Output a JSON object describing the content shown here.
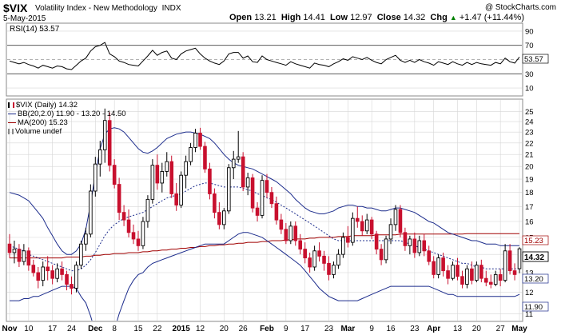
{
  "header": {
    "symbol": "$VIX",
    "name": "Volatility Index - New Methodology",
    "exchange": "INDX",
    "copyright": "@ StockCharts.com",
    "date": "5-May-2015",
    "open_label": "Open",
    "open": "13.21",
    "high_label": "High",
    "high": "14.41",
    "low_label": "Low",
    "low": "12.97",
    "close_label": "Close",
    "close": "14.32",
    "chg_label": "Chg",
    "chg": "+1.47 (+11.44%)",
    "chg_arrow": "▲"
  },
  "rsi_panel": {
    "label": "RSI(14) 53.57",
    "current_value": "53.57",
    "ticks": [
      "90",
      "70",
      "50",
      "30",
      "10"
    ]
  },
  "legend": {
    "price": "$VIX (Daily) 14.32",
    "bb": "BB(20,2.0) 11.90 - 13.20 - 14.50",
    "ma": "MA(200) 15.23",
    "volume": "Volume undef"
  },
  "price_tags": {
    "ma": "15.23",
    "close": "14.32",
    "bb_mid": "13.20",
    "bb_lower": "11.90"
  },
  "colors": {
    "up": "#000000",
    "down": "#c8102e",
    "bb": "#1c2c8c",
    "ma": "#a00000",
    "rsi": "#000000",
    "grid": "#d6d6d6"
  },
  "chart_data": {
    "type": "candlestick",
    "title": "$VIX Volatility Index - New Methodology INDX",
    "y_axis_ticks": [
      25,
      24,
      23,
      22,
      21,
      20,
      19,
      18,
      17,
      16,
      15,
      14,
      13,
      12,
      11
    ],
    "y_scale": "log",
    "x_axis_labels": [
      "Nov",
      "10",
      "17",
      "24",
      "Dec",
      "8",
      "15",
      "22",
      "2015",
      "12",
      "20",
      "26",
      "Feb",
      "9",
      "17",
      "23",
      "Mar",
      "9",
      "16",
      "23",
      "Apr",
      "13",
      "20",
      "27",
      "May"
    ],
    "ylim": [
      10.7,
      26.2
    ],
    "candles": [
      {
        "o": 14.6,
        "h": 15.2,
        "l": 13.8,
        "c": 14.1
      },
      {
        "o": 14.1,
        "h": 14.8,
        "l": 13.5,
        "c": 14.3
      },
      {
        "o": 14.3,
        "h": 14.6,
        "l": 13.3,
        "c": 13.6
      },
      {
        "o": 13.6,
        "h": 14.6,
        "l": 13.4,
        "c": 14.2
      },
      {
        "o": 14.2,
        "h": 14.4,
        "l": 13.1,
        "c": 13.4
      },
      {
        "o": 13.4,
        "h": 13.7,
        "l": 12.8,
        "c": 13.0
      },
      {
        "o": 13.0,
        "h": 13.3,
        "l": 12.2,
        "c": 12.6
      },
      {
        "o": 12.6,
        "h": 13.6,
        "l": 12.3,
        "c": 13.3
      },
      {
        "o": 13.3,
        "h": 13.9,
        "l": 12.6,
        "c": 13.1
      },
      {
        "o": 13.1,
        "h": 13.4,
        "l": 12.4,
        "c": 12.7
      },
      {
        "o": 12.7,
        "h": 13.5,
        "l": 12.5,
        "c": 13.2
      },
      {
        "o": 13.2,
        "h": 13.6,
        "l": 12.6,
        "c": 12.9
      },
      {
        "o": 12.9,
        "h": 13.1,
        "l": 12.1,
        "c": 12.4
      },
      {
        "o": 12.4,
        "h": 12.8,
        "l": 11.9,
        "c": 12.2
      },
      {
        "o": 12.2,
        "h": 13.6,
        "l": 12.0,
        "c": 13.4
      },
      {
        "o": 13.4,
        "h": 14.8,
        "l": 13.2,
        "c": 14.6
      },
      {
        "o": 14.6,
        "h": 15.6,
        "l": 14.2,
        "c": 15.2
      },
      {
        "o": 15.2,
        "h": 18.6,
        "l": 15.0,
        "c": 18.1
      },
      {
        "o": 18.1,
        "h": 20.8,
        "l": 17.7,
        "c": 20.2
      },
      {
        "o": 20.2,
        "h": 22.2,
        "l": 19.2,
        "c": 21.4
      },
      {
        "o": 21.4,
        "h": 25.3,
        "l": 20.3,
        "c": 24.1
      },
      {
        "o": 24.1,
        "h": 24.9,
        "l": 19.6,
        "c": 20.1
      },
      {
        "o": 20.1,
        "h": 20.6,
        "l": 18.3,
        "c": 18.6
      },
      {
        "o": 18.6,
        "h": 19.1,
        "l": 16.1,
        "c": 16.6
      },
      {
        "o": 16.6,
        "h": 17.1,
        "l": 15.7,
        "c": 16.1
      },
      {
        "o": 16.1,
        "h": 16.8,
        "l": 15.0,
        "c": 15.3
      },
      {
        "o": 15.3,
        "h": 15.8,
        "l": 14.6,
        "c": 14.9
      },
      {
        "o": 14.9,
        "h": 15.4,
        "l": 14.2,
        "c": 14.5
      },
      {
        "o": 14.5,
        "h": 16.3,
        "l": 14.3,
        "c": 16.0
      },
      {
        "o": 16.0,
        "h": 17.8,
        "l": 15.6,
        "c": 17.5
      },
      {
        "o": 17.5,
        "h": 20.6,
        "l": 17.2,
        "c": 20.1
      },
      {
        "o": 20.1,
        "h": 21.0,
        "l": 18.2,
        "c": 18.7
      },
      {
        "o": 18.7,
        "h": 20.3,
        "l": 18.0,
        "c": 19.6
      },
      {
        "o": 19.6,
        "h": 21.2,
        "l": 19.2,
        "c": 20.4
      },
      {
        "o": 20.4,
        "h": 20.9,
        "l": 17.6,
        "c": 17.9
      },
      {
        "o": 17.9,
        "h": 18.7,
        "l": 16.7,
        "c": 17.1
      },
      {
        "o": 17.1,
        "h": 19.6,
        "l": 16.9,
        "c": 19.3
      },
      {
        "o": 19.3,
        "h": 20.9,
        "l": 18.3,
        "c": 20.4
      },
      {
        "o": 20.4,
        "h": 22.0,
        "l": 20.1,
        "c": 21.6
      },
      {
        "o": 21.6,
        "h": 23.3,
        "l": 21.2,
        "c": 22.9
      },
      {
        "o": 22.9,
        "h": 23.4,
        "l": 21.4,
        "c": 21.7
      },
      {
        "o": 21.7,
        "h": 22.1,
        "l": 19.5,
        "c": 19.8
      },
      {
        "o": 19.8,
        "h": 20.3,
        "l": 17.5,
        "c": 17.9
      },
      {
        "o": 17.9,
        "h": 18.3,
        "l": 16.2,
        "c": 16.6
      },
      {
        "o": 16.6,
        "h": 17.3,
        "l": 15.5,
        "c": 15.8
      },
      {
        "o": 15.8,
        "h": 16.9,
        "l": 15.5,
        "c": 16.7
      },
      {
        "o": 16.7,
        "h": 20.2,
        "l": 16.5,
        "c": 19.9
      },
      {
        "o": 19.9,
        "h": 21.3,
        "l": 19.0,
        "c": 20.6
      },
      {
        "o": 20.6,
        "h": 23.1,
        "l": 20.3,
        "c": 20.8
      },
      {
        "o": 20.8,
        "h": 21.2,
        "l": 18.1,
        "c": 18.4
      },
      {
        "o": 18.4,
        "h": 19.5,
        "l": 17.8,
        "c": 19.1
      },
      {
        "o": 19.1,
        "h": 19.4,
        "l": 16.6,
        "c": 16.9
      },
      {
        "o": 16.9,
        "h": 17.3,
        "l": 16.0,
        "c": 16.4
      },
      {
        "o": 16.4,
        "h": 19.3,
        "l": 16.2,
        "c": 18.9
      },
      {
        "o": 18.9,
        "h": 19.4,
        "l": 17.6,
        "c": 18.0
      },
      {
        "o": 18.0,
        "h": 18.4,
        "l": 16.9,
        "c": 17.2
      },
      {
        "o": 17.2,
        "h": 17.7,
        "l": 15.8,
        "c": 16.1
      },
      {
        "o": 16.1,
        "h": 16.5,
        "l": 15.2,
        "c": 15.5
      },
      {
        "o": 15.5,
        "h": 15.9,
        "l": 14.6,
        "c": 14.8
      },
      {
        "o": 14.8,
        "h": 16.0,
        "l": 14.6,
        "c": 15.7
      },
      {
        "o": 15.7,
        "h": 16.0,
        "l": 14.5,
        "c": 14.8
      },
      {
        "o": 14.8,
        "h": 15.2,
        "l": 14.0,
        "c": 14.3
      },
      {
        "o": 14.3,
        "h": 14.7,
        "l": 13.5,
        "c": 13.8
      },
      {
        "o": 13.8,
        "h": 14.1,
        "l": 13.0,
        "c": 13.3
      },
      {
        "o": 13.3,
        "h": 14.5,
        "l": 13.1,
        "c": 14.2
      },
      {
        "o": 14.2,
        "h": 14.7,
        "l": 13.6,
        "c": 13.9
      },
      {
        "o": 13.9,
        "h": 14.2,
        "l": 13.1,
        "c": 13.5
      },
      {
        "o": 13.5,
        "h": 13.9,
        "l": 12.6,
        "c": 12.9
      },
      {
        "o": 12.9,
        "h": 13.6,
        "l": 12.7,
        "c": 13.4
      },
      {
        "o": 13.4,
        "h": 14.3,
        "l": 13.2,
        "c": 14.0
      },
      {
        "o": 14.0,
        "h": 15.3,
        "l": 13.8,
        "c": 15.0
      },
      {
        "o": 15.0,
        "h": 15.7,
        "l": 14.4,
        "c": 14.7
      },
      {
        "o": 14.7,
        "h": 16.6,
        "l": 14.5,
        "c": 16.2
      },
      {
        "o": 16.2,
        "h": 17.0,
        "l": 15.6,
        "c": 16.0
      },
      {
        "o": 16.0,
        "h": 16.4,
        "l": 15.1,
        "c": 15.4
      },
      {
        "o": 15.4,
        "h": 16.5,
        "l": 15.2,
        "c": 16.1
      },
      {
        "o": 16.1,
        "h": 16.3,
        "l": 14.9,
        "c": 15.2
      },
      {
        "o": 15.2,
        "h": 15.4,
        "l": 14.0,
        "c": 14.3
      },
      {
        "o": 14.3,
        "h": 14.6,
        "l": 13.4,
        "c": 13.7
      },
      {
        "o": 13.7,
        "h": 15.1,
        "l": 13.5,
        "c": 14.9
      },
      {
        "o": 14.9,
        "h": 16.2,
        "l": 14.6,
        "c": 15.8
      },
      {
        "o": 15.8,
        "h": 17.1,
        "l": 15.4,
        "c": 16.8
      },
      {
        "o": 16.8,
        "h": 17.1,
        "l": 15.0,
        "c": 15.3
      },
      {
        "o": 15.3,
        "h": 15.6,
        "l": 14.2,
        "c": 14.5
      },
      {
        "o": 14.5,
        "h": 15.1,
        "l": 14.0,
        "c": 14.9
      },
      {
        "o": 14.9,
        "h": 15.3,
        "l": 13.8,
        "c": 14.1
      },
      {
        "o": 14.1,
        "h": 15.1,
        "l": 13.9,
        "c": 14.8
      },
      {
        "o": 14.8,
        "h": 15.2,
        "l": 13.9,
        "c": 14.2
      },
      {
        "o": 14.2,
        "h": 14.5,
        "l": 13.4,
        "c": 13.6
      },
      {
        "o": 13.6,
        "h": 13.9,
        "l": 12.7,
        "c": 12.9
      },
      {
        "o": 12.9,
        "h": 14.0,
        "l": 12.7,
        "c": 13.8
      },
      {
        "o": 13.8,
        "h": 14.1,
        "l": 12.8,
        "c": 13.1
      },
      {
        "o": 13.1,
        "h": 13.4,
        "l": 12.4,
        "c": 12.7
      },
      {
        "o": 12.7,
        "h": 13.6,
        "l": 12.6,
        "c": 13.4
      },
      {
        "o": 13.4,
        "h": 13.8,
        "l": 12.6,
        "c": 12.8
      },
      {
        "o": 12.8,
        "h": 13.1,
        "l": 12.2,
        "c": 12.4
      },
      {
        "o": 12.4,
        "h": 13.4,
        "l": 12.2,
        "c": 13.2
      },
      {
        "o": 13.2,
        "h": 13.6,
        "l": 12.4,
        "c": 12.6
      },
      {
        "o": 12.6,
        "h": 13.6,
        "l": 12.5,
        "c": 13.4
      },
      {
        "o": 13.4,
        "h": 13.7,
        "l": 12.5,
        "c": 12.7
      },
      {
        "o": 12.7,
        "h": 13.1,
        "l": 12.3,
        "c": 12.5
      },
      {
        "o": 12.5,
        "h": 12.9,
        "l": 12.2,
        "c": 12.4
      },
      {
        "o": 12.4,
        "h": 13.1,
        "l": 12.3,
        "c": 12.9
      },
      {
        "o": 12.9,
        "h": 13.2,
        "l": 12.3,
        "c": 12.6
      },
      {
        "o": 12.6,
        "h": 14.6,
        "l": 12.5,
        "c": 14.2
      },
      {
        "o": 14.2,
        "h": 14.6,
        "l": 12.9,
        "c": 13.1
      },
      {
        "o": 13.1,
        "h": 13.5,
        "l": 12.6,
        "c": 12.9
      },
      {
        "o": 13.21,
        "h": 14.41,
        "l": 12.97,
        "c": 14.32
      }
    ],
    "bollinger": {
      "upper": [
        18.0,
        17.9,
        17.8,
        17.6,
        17.4,
        17.0,
        16.6,
        16.2,
        15.6,
        15.1,
        14.6,
        14.2,
        14.0,
        14.0,
        14.2,
        14.6,
        15.5,
        17.2,
        19.4,
        21.5,
        22.8,
        23.3,
        23.4,
        23.3,
        23.0,
        22.5,
        22.0,
        21.5,
        21.2,
        21.1,
        21.3,
        21.6,
        22.0,
        22.4,
        22.6,
        22.8,
        22.9,
        23.0,
        23.0,
        22.9,
        22.8,
        22.6,
        22.4,
        22.0,
        21.5,
        21.0,
        20.6,
        20.3,
        20.1,
        20.0,
        19.9,
        19.8,
        19.6,
        19.4,
        19.2,
        19.0,
        18.8,
        18.5,
        18.2,
        17.9,
        17.5,
        17.2,
        16.9,
        16.7,
        16.6,
        16.5,
        16.5,
        16.6,
        16.7,
        16.9,
        17.0,
        17.1,
        17.1,
        17.0,
        17.0,
        16.9,
        16.9,
        16.8,
        16.7,
        16.7,
        16.8,
        16.9,
        16.9,
        16.8,
        16.7,
        16.6,
        16.4,
        16.2,
        16.0,
        15.9,
        15.7,
        15.5,
        15.3,
        15.2,
        15.1,
        15.0,
        14.9,
        14.8,
        14.8,
        14.7,
        14.6,
        14.6,
        14.6,
        14.5,
        14.5,
        14.5,
        14.5,
        14.5
      ],
      "middle": [
        14.5,
        14.4,
        14.3,
        14.2,
        14.0,
        13.9,
        13.8,
        13.7,
        13.6,
        13.5,
        13.4,
        13.3,
        13.2,
        13.1,
        13.1,
        13.2,
        13.4,
        13.7,
        14.1,
        14.6,
        15.1,
        15.5,
        15.8,
        16.0,
        16.2,
        16.3,
        16.4,
        16.5,
        16.6,
        16.8,
        17.0,
        17.2,
        17.4,
        17.6,
        17.7,
        17.8,
        17.9,
        18.1,
        18.3,
        18.5,
        18.6,
        18.7,
        18.7,
        18.6,
        18.5,
        18.4,
        18.4,
        18.4,
        18.4,
        18.3,
        18.2,
        18.1,
        17.9,
        17.8,
        17.6,
        17.5,
        17.3,
        17.1,
        16.9,
        16.7,
        16.5,
        16.3,
        16.1,
        15.9,
        15.7,
        15.5,
        15.3,
        15.1,
        14.9,
        14.8,
        14.8,
        14.8,
        14.8,
        14.8,
        14.8,
        14.8,
        14.8,
        14.8,
        14.8,
        14.8,
        14.8,
        14.8,
        14.8,
        14.7,
        14.6,
        14.5,
        14.4,
        14.3,
        14.2,
        14.1,
        14.0,
        13.9,
        13.8,
        13.7,
        13.6,
        13.5,
        13.5,
        13.4,
        13.3,
        13.3,
        13.2,
        13.2,
        13.2,
        13.2,
        13.2,
        13.2,
        13.2,
        13.2
      ],
      "lower": [
        11.6,
        11.6,
        11.6,
        11.7,
        11.7,
        11.8,
        11.8,
        11.9,
        12.0,
        12.1,
        12.2,
        12.3,
        12.3,
        12.3,
        12.2,
        11.8,
        11.5,
        10.9,
        10.2,
        9.7,
        9.5,
        9.7,
        10.3,
        11.0,
        11.6,
        12.2,
        12.6,
        12.9,
        13.0,
        13.3,
        13.5,
        13.6,
        13.7,
        13.8,
        13.9,
        14.0,
        14.1,
        14.2,
        14.3,
        14.4,
        14.5,
        14.6,
        14.6,
        14.6,
        14.6,
        14.6,
        14.8,
        15.0,
        15.2,
        15.3,
        15.3,
        15.2,
        15.1,
        15.0,
        14.8,
        14.6,
        14.4,
        14.2,
        14.0,
        13.8,
        13.6,
        13.4,
        13.1,
        12.8,
        12.5,
        12.2,
        12.0,
        11.8,
        11.7,
        11.6,
        11.6,
        11.6,
        11.6,
        11.6,
        11.7,
        11.8,
        11.9,
        12.0,
        12.1,
        12.2,
        12.3,
        12.3,
        12.3,
        12.3,
        12.3,
        12.3,
        12.3,
        12.3,
        12.3,
        12.2,
        12.1,
        12.0,
        11.9,
        11.9,
        11.8,
        11.8,
        11.8,
        11.8,
        11.8,
        11.8,
        11.8,
        11.8,
        11.8,
        11.8,
        11.8,
        11.8,
        11.8,
        11.9
      ]
    },
    "ma200": [
      13.8,
      13.8,
      13.8,
      13.8,
      13.8,
      13.8,
      13.8,
      13.8,
      13.8,
      13.8,
      13.8,
      13.8,
      13.85,
      13.85,
      13.85,
      13.85,
      13.9,
      13.9,
      13.95,
      13.95,
      14.0,
      14.0,
      14.05,
      14.05,
      14.05,
      14.1,
      14.1,
      14.1,
      14.15,
      14.15,
      14.2,
      14.2,
      14.25,
      14.25,
      14.3,
      14.3,
      14.35,
      14.35,
      14.4,
      14.4,
      14.45,
      14.45,
      14.5,
      14.5,
      14.55,
      14.55,
      14.6,
      14.6,
      14.65,
      14.65,
      14.7,
      14.7,
      14.7,
      14.75,
      14.75,
      14.8,
      14.8,
      14.8,
      14.85,
      14.85,
      14.9,
      14.9,
      14.9,
      14.95,
      14.95,
      15.0,
      15.0,
      15.0,
      15.0,
      15.05,
      15.05,
      15.05,
      15.1,
      15.1,
      15.1,
      15.1,
      15.1,
      15.15,
      15.15,
      15.15,
      15.15,
      15.15,
      15.2,
      15.2,
      15.2,
      15.2,
      15.2,
      15.2,
      15.2,
      15.2,
      15.2,
      15.2,
      15.2,
      15.2,
      15.2,
      15.2,
      15.23,
      15.23,
      15.23,
      15.23,
      15.23,
      15.23,
      15.23,
      15.23,
      15.23,
      15.23,
      15.23,
      15.23
    ],
    "rsi": [
      48,
      46,
      44,
      46,
      43,
      41,
      38,
      42,
      40,
      38,
      41,
      40,
      37,
      36,
      42,
      48,
      52,
      62,
      68,
      70,
      74,
      58,
      54,
      48,
      46,
      43,
      42,
      41,
      48,
      55,
      63,
      56,
      60,
      62,
      52,
      50,
      58,
      62,
      64,
      66,
      58,
      52,
      48,
      45,
      43,
      48,
      58,
      60,
      60,
      52,
      55,
      47,
      46,
      55,
      50,
      48,
      46,
      44,
      42,
      47,
      44,
      42,
      40,
      38,
      45,
      43,
      42,
      40,
      44,
      47,
      51,
      49,
      54,
      52,
      50,
      53,
      49,
      46,
      44,
      50,
      53,
      56,
      49,
      46,
      49,
      46,
      50,
      47,
      45,
      42,
      47,
      45,
      43,
      47,
      44,
      42,
      46,
      43,
      46,
      44,
      43,
      42,
      46,
      44,
      52,
      47,
      45,
      53.57
    ]
  }
}
